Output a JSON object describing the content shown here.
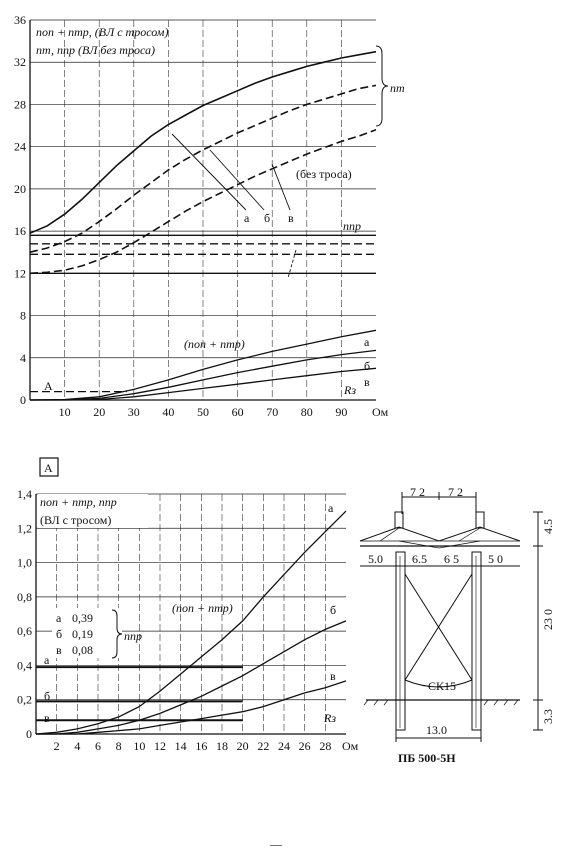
{
  "chart_data": [
    {
      "type": "line",
      "title": "",
      "xlabel": "",
      "x_unit": "Ом",
      "xlim": [
        0,
        100
      ],
      "ylim": [
        0,
        36
      ],
      "x_ticks": [
        10,
        20,
        30,
        40,
        50,
        60,
        70,
        80,
        90
      ],
      "y_ticks": [
        0,
        4,
        8,
        12,
        16,
        20,
        24,
        28,
        32,
        36
      ],
      "grid": true,
      "legend_lines": [
        "nоп + nтр, (ВЛ с тросом)",
        "nт, nпр (ВЛ без троса)"
      ],
      "annotations": {
        "nt_label": "nт",
        "no_ground_label": "(без троса)",
        "npr_label": "nпр",
        "sum_label": "(nоп + nтр)",
        "rz_label": "Rз",
        "zoom_label": "A",
        "curve_a": "а",
        "curve_b": "б",
        "curve_v": "в"
      },
      "series": [
        {
          "name": "а",
          "group": "nт",
          "style": "solid",
          "x": [
            0,
            5,
            10,
            15,
            20,
            25,
            30,
            35,
            40,
            45,
            50,
            55,
            60,
            65,
            70,
            75,
            80,
            85,
            90,
            95,
            100
          ],
          "y": [
            15.8,
            16.5,
            17.6,
            19.0,
            20.6,
            22.2,
            23.6,
            25.0,
            26.1,
            27.0,
            27.9,
            28.6,
            29.3,
            30.0,
            30.6,
            31.1,
            31.6,
            32.0,
            32.4,
            32.7,
            33.0
          ]
        },
        {
          "name": "б",
          "group": "nт",
          "style": "dashed",
          "x": [
            0,
            5,
            10,
            15,
            20,
            25,
            30,
            35,
            40,
            45,
            50,
            55,
            60,
            65,
            70,
            75,
            80,
            85,
            90,
            95,
            100
          ],
          "y": [
            14.0,
            14.4,
            15.0,
            15.8,
            16.9,
            18.1,
            19.4,
            20.6,
            21.8,
            22.8,
            23.7,
            24.5,
            25.3,
            26.0,
            26.7,
            27.4,
            28.0,
            28.5,
            29.0,
            29.5,
            29.8
          ]
        },
        {
          "name": "в",
          "group": "nт",
          "style": "dashed",
          "x": [
            0,
            5,
            10,
            15,
            20,
            25,
            30,
            35,
            40,
            45,
            50,
            55,
            60,
            65,
            70,
            75,
            80,
            85,
            90,
            95,
            100
          ],
          "y": [
            12.0,
            12.1,
            12.3,
            12.7,
            13.3,
            14.0,
            14.9,
            15.9,
            16.9,
            17.9,
            18.8,
            19.6,
            20.4,
            21.2,
            21.9,
            22.6,
            23.3,
            23.9,
            24.5,
            25.0,
            25.6
          ]
        },
        {
          "name": "nпр а",
          "group": "nпр",
          "style": "solid",
          "x": [
            0,
            100
          ],
          "y": [
            15.6,
            15.6
          ]
        },
        {
          "name": "nпр б",
          "group": "nпр",
          "style": "dashed",
          "x": [
            0,
            100
          ],
          "y": [
            14.8,
            14.8
          ]
        },
        {
          "name": "nпр в",
          "group": "nпр",
          "style": "dashed",
          "x": [
            0,
            100
          ],
          "y": [
            13.8,
            13.8
          ]
        },
        {
          "name": "nпр",
          "group": "nпр",
          "style": "solid",
          "x": [
            0,
            100
          ],
          "y": [
            12.0,
            12.0
          ]
        },
        {
          "name": "(nоп+nтр) а",
          "group": "sum",
          "style": "solid",
          "x": [
            0,
            10,
            20,
            30,
            40,
            50,
            60,
            70,
            80,
            90,
            100
          ],
          "y": [
            0.0,
            0.05,
            0.3,
            1.0,
            1.9,
            2.9,
            3.8,
            4.6,
            5.3,
            6.0,
            6.6
          ]
        },
        {
          "name": "(nоп+nтр) б",
          "group": "sum",
          "style": "solid",
          "x": [
            0,
            10,
            20,
            30,
            40,
            50,
            60,
            70,
            80,
            90,
            100
          ],
          "y": [
            0.0,
            0.02,
            0.15,
            0.6,
            1.2,
            1.9,
            2.6,
            3.2,
            3.8,
            4.3,
            4.7
          ]
        },
        {
          "name": "(nоп+nтр) в",
          "group": "sum",
          "style": "solid",
          "x": [
            0,
            10,
            20,
            30,
            40,
            50,
            60,
            70,
            80,
            90,
            100
          ],
          "y": [
            0.0,
            0.0,
            0.05,
            0.3,
            0.7,
            1.1,
            1.5,
            1.9,
            2.3,
            2.7,
            3.0
          ]
        },
        {
          "name": "A",
          "group": "zoom",
          "style": "dashed",
          "x": [
            0,
            28
          ],
          "y": [
            0.8,
            0.8
          ]
        }
      ]
    },
    {
      "type": "line",
      "title": "",
      "zoom_box_label": "A",
      "xlabel": "",
      "x_unit": "Ом",
      "xlim": [
        0,
        30
      ],
      "ylim": [
        0,
        1.4
      ],
      "x_ticks": [
        2,
        4,
        6,
        8,
        10,
        12,
        14,
        16,
        18,
        20,
        22,
        24,
        26,
        28
      ],
      "y_ticks": [
        0,
        0.2,
        0.4,
        0.6,
        0.8,
        1.0,
        1.2,
        1.4
      ],
      "y_tick_labels": [
        "0",
        "0,2",
        "0,4",
        "0,6",
        "0,8",
        "1,0",
        "1,2",
        "1,4"
      ],
      "grid": true,
      "legend_lines": [
        "nоп + nтр, nпр",
        "(ВЛ с тросом)"
      ],
      "npr_table": {
        "rows": [
          {
            "curve": "а",
            "value": "0,39"
          },
          {
            "curve": "б",
            "value": "0,19"
          },
          {
            "curve": "в",
            "value": "0,08"
          }
        ],
        "label": "nпр"
      },
      "annotations": {
        "sum_label": "(nоп + nтр)",
        "rz_label": "Rз",
        "curve_a": "а",
        "curve_b": "б",
        "curve_v": "в"
      },
      "series": [
        {
          "name": "а",
          "group": "sum",
          "x": [
            0,
            2,
            4,
            6,
            8,
            10,
            12,
            14,
            16,
            18,
            20,
            22,
            24,
            26,
            28,
            30
          ],
          "y": [
            0.0,
            0.01,
            0.03,
            0.06,
            0.1,
            0.16,
            0.25,
            0.35,
            0.45,
            0.55,
            0.66,
            0.8,
            0.93,
            1.06,
            1.18,
            1.3
          ]
        },
        {
          "name": "б",
          "group": "sum",
          "x": [
            0,
            2,
            4,
            6,
            8,
            10,
            12,
            14,
            16,
            18,
            20,
            22,
            24,
            26,
            28,
            30
          ],
          "y": [
            0.0,
            0.0,
            0.01,
            0.03,
            0.05,
            0.08,
            0.12,
            0.17,
            0.22,
            0.28,
            0.34,
            0.41,
            0.48,
            0.55,
            0.61,
            0.66
          ]
        },
        {
          "name": "в",
          "group": "sum",
          "x": [
            0,
            2,
            4,
            6,
            8,
            10,
            12,
            14,
            16,
            18,
            20,
            22,
            24,
            26,
            28,
            30
          ],
          "y": [
            0.0,
            0.0,
            0.0,
            0.01,
            0.02,
            0.03,
            0.05,
            0.07,
            0.09,
            0.11,
            0.13,
            0.16,
            0.2,
            0.24,
            0.27,
            0.31
          ]
        },
        {
          "name": "nпр а",
          "group": "npr",
          "x": [
            0,
            20
          ],
          "y": [
            0.39,
            0.39
          ]
        },
        {
          "name": "nпр б",
          "group": "npr",
          "x": [
            0,
            20
          ],
          "y": [
            0.19,
            0.19
          ]
        },
        {
          "name": "nпр в",
          "group": "npr",
          "x": [
            0,
            20
          ],
          "y": [
            0.08,
            0.08
          ]
        }
      ]
    }
  ],
  "tower": {
    "top_dims": [
      "7 2",
      "7 2"
    ],
    "beam_dims": [
      "5.0",
      "6.5",
      "6 5",
      "5 0"
    ],
    "height_dims": [
      "4.5",
      "23 0",
      "3.3"
    ],
    "base_dim": "13.0",
    "ground_wire_label": "СК15",
    "caption": "ПБ 500-5Н"
  },
  "page_footer_mark": "—"
}
